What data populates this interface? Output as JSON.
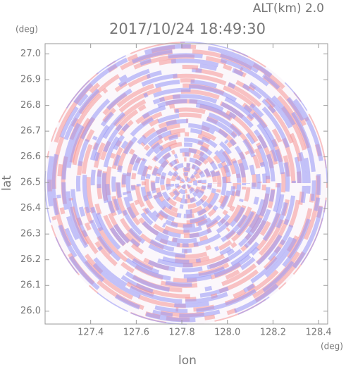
{
  "chart_data": {
    "type": "image",
    "title": "2017/10/24 18:49:30",
    "subtitle": "ALT(km) 2.0",
    "x_label": "lon",
    "y_label": "lat",
    "x_unit": "(deg)",
    "y_unit": "(deg)",
    "xlim": [
      127.2,
      128.44
    ],
    "ylim": [
      25.95,
      27.04
    ],
    "xticks": [
      127.4,
      127.6,
      127.8,
      {
        "value": 128,
        "label": "128.0"
      },
      128.2,
      128.4
    ],
    "yticks": [
      {
        "value": 26,
        "label": "26.0"
      },
      26.1,
      26.2,
      26.3,
      26.4,
      26.5,
      26.6,
      26.7,
      26.8,
      26.9,
      {
        "value": 27,
        "label": "27.0"
      }
    ]
  }
}
